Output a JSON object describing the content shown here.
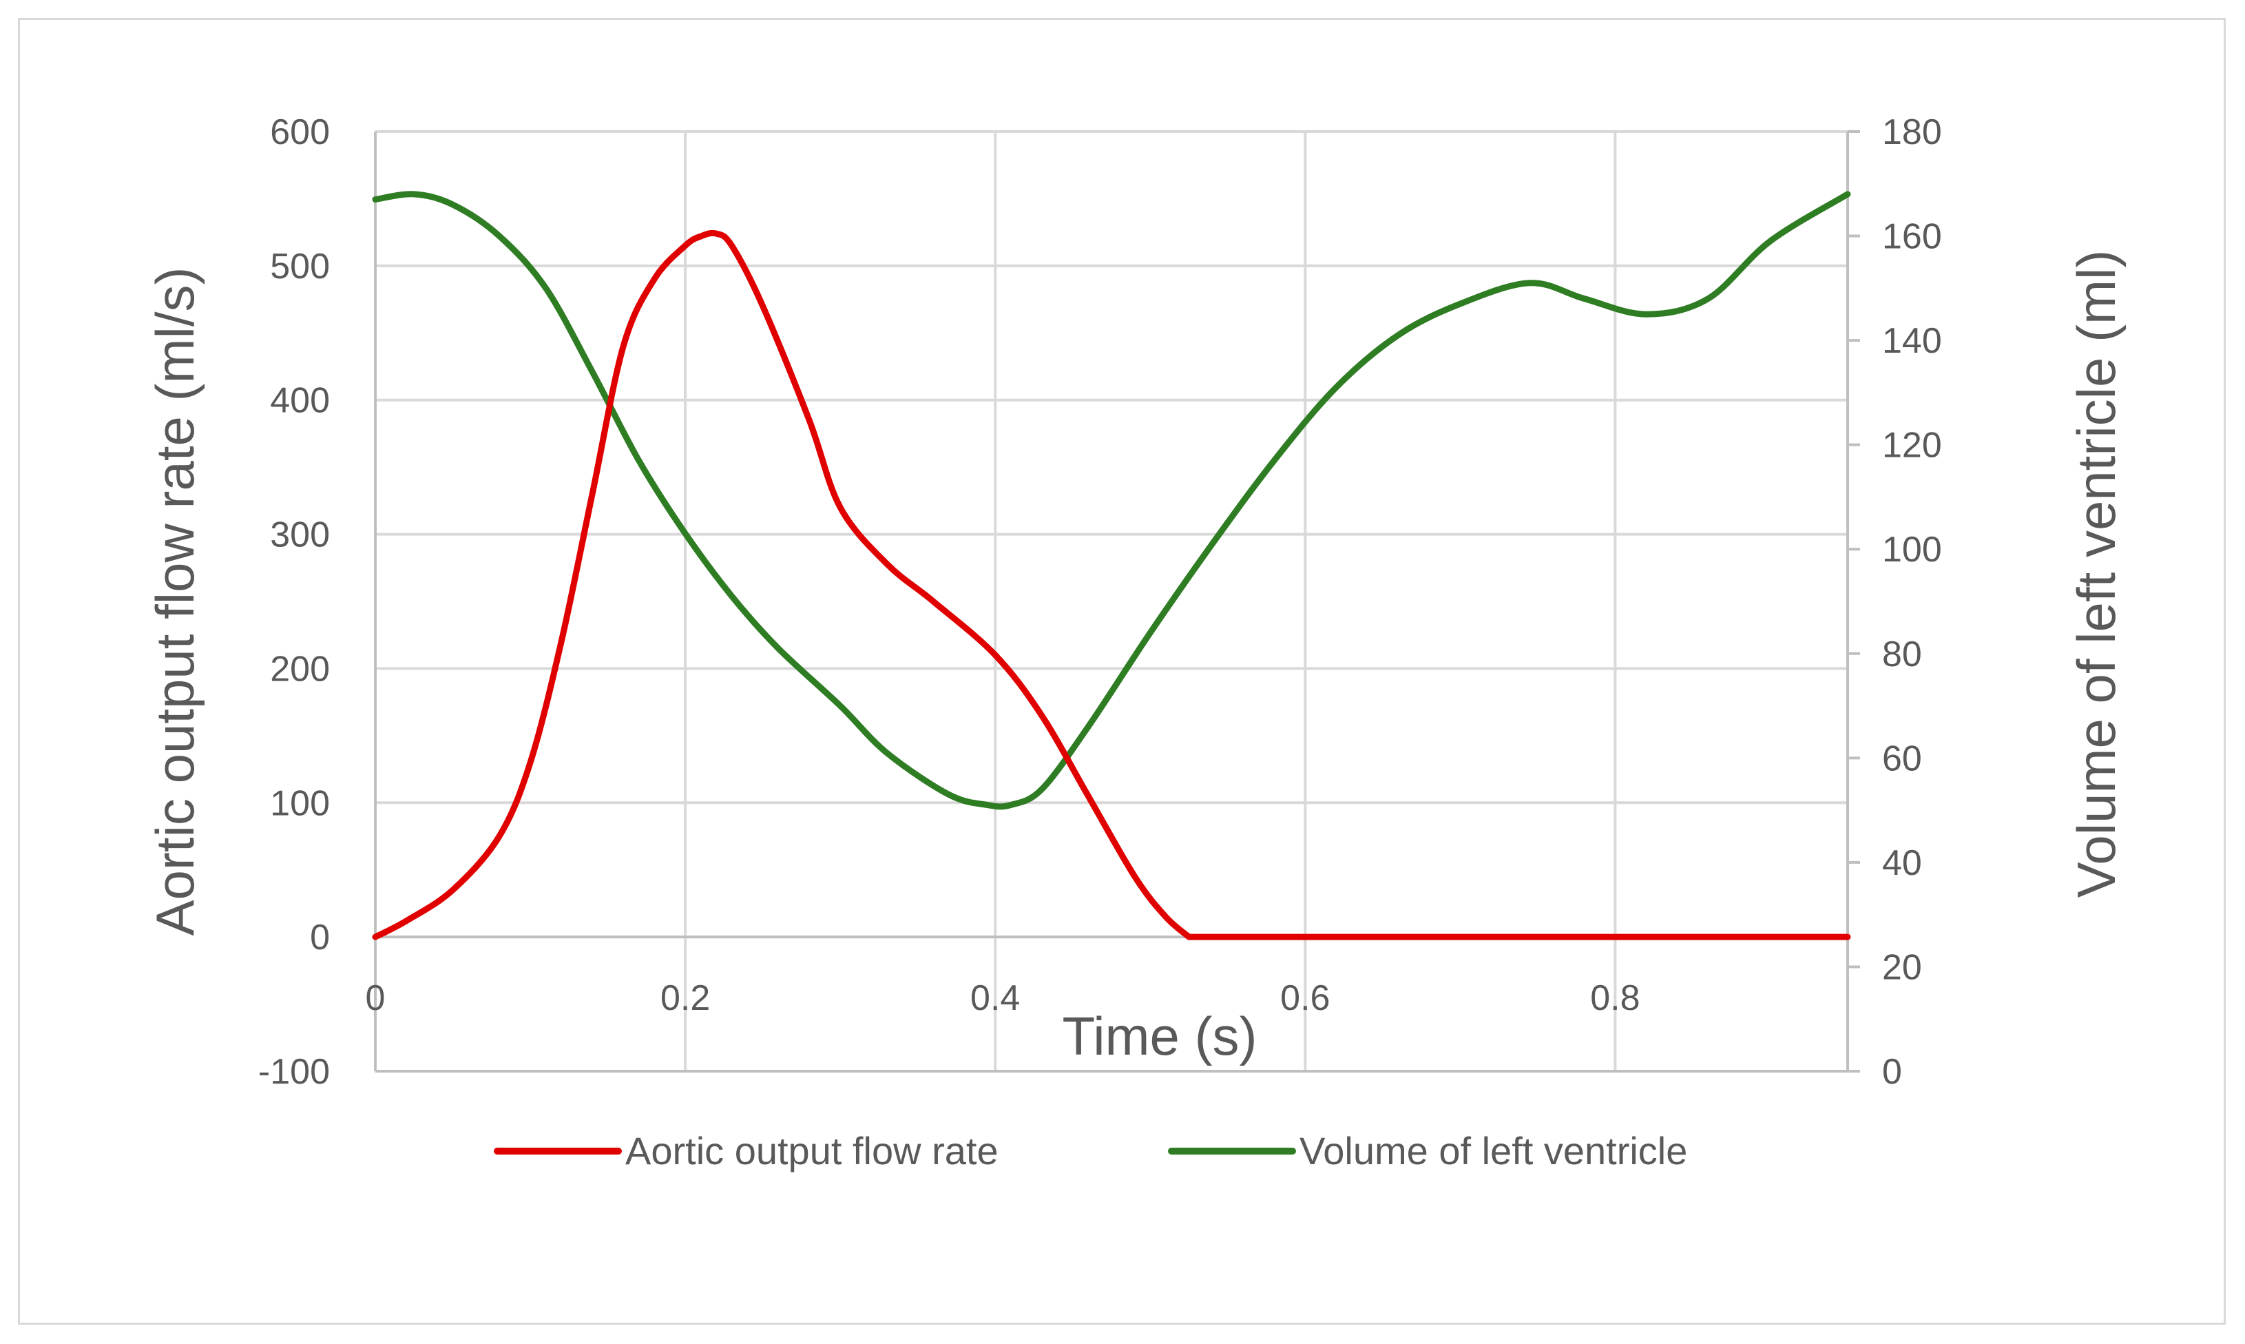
{
  "chart_data": {
    "type": "line",
    "title": "",
    "xlabel": "Time (s)",
    "ylabel": "Aortic output flow rate (ml/s)",
    "y2label": "Volume of left ventricle (ml)",
    "xlim": [
      0,
      0.95
    ],
    "ylim": [
      -100,
      600
    ],
    "y2lim": [
      0,
      180
    ],
    "x_ticks": [
      "0",
      "0.2",
      "0.4",
      "0.6",
      "0.8"
    ],
    "x_tick_values": [
      0,
      0.2,
      0.4,
      0.6,
      0.8
    ],
    "y_ticks": [
      "-100",
      "0",
      "100",
      "200",
      "300",
      "400",
      "500",
      "600"
    ],
    "y_tick_values": [
      -100,
      0,
      100,
      200,
      300,
      400,
      500,
      600
    ],
    "y2_ticks": [
      "0",
      "20",
      "40",
      "60",
      "80",
      "100",
      "120",
      "140",
      "160",
      "180"
    ],
    "y2_tick_values": [
      0,
      20,
      40,
      60,
      80,
      100,
      120,
      140,
      160,
      180
    ],
    "grid": true,
    "legend_position": "bottom",
    "series": [
      {
        "name": "Aortic output flow rate",
        "axis": "left",
        "color": "#e00000",
        "x": [
          0,
          0.02,
          0.05,
          0.08,
          0.1,
          0.12,
          0.14,
          0.16,
          0.18,
          0.2,
          0.21,
          0.22,
          0.23,
          0.25,
          0.28,
          0.3,
          0.33,
          0.36,
          0.4,
          0.43,
          0.46,
          0.49,
          0.51,
          0.525,
          0.6,
          0.7,
          0.8,
          0.95
        ],
        "values": [
          0,
          12,
          35,
          75,
          130,
          220,
          330,
          440,
          490,
          515,
          522,
          524,
          515,
          470,
          385,
          320,
          278,
          250,
          210,
          165,
          105,
          45,
          15,
          0,
          0,
          0,
          0,
          0
        ]
      },
      {
        "name": "Volume of left ventricle",
        "axis": "right",
        "color": "#2e7d23",
        "x": [
          0,
          0.025,
          0.05,
          0.08,
          0.11,
          0.14,
          0.17,
          0.2,
          0.23,
          0.26,
          0.3,
          0.33,
          0.37,
          0.395,
          0.41,
          0.43,
          0.46,
          0.5,
          0.54,
          0.58,
          0.62,
          0.66,
          0.7,
          0.745,
          0.78,
          0.82,
          0.86,
          0.9,
          0.95
        ],
        "values": [
          167,
          168,
          166,
          160,
          150,
          134,
          117,
          103,
          91,
          81,
          70,
          61,
          53,
          51,
          51,
          54,
          66,
          84,
          101,
          117,
          131,
          141,
          147,
          151,
          148,
          145,
          148,
          159,
          168
        ]
      }
    ]
  }
}
